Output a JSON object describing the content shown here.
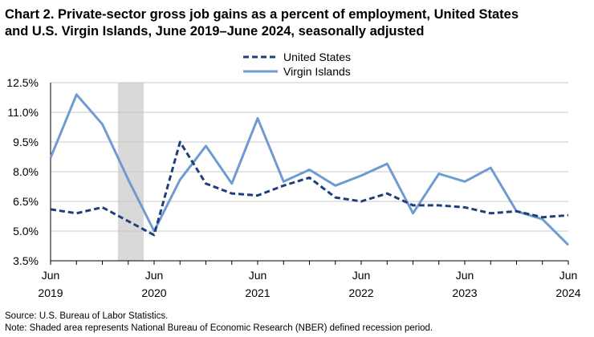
{
  "title_line1": "Chart 2. Private-sector gross job gains as a percent of employment, United States",
  "title_line2": "and U.S. Virgin Islands, June 2019–June 2024, seasonally adjusted",
  "source": "Source: U.S. Bureau of Labor Statistics.",
  "note": "Note: Shaded area represents National Bureau of Economic Research (NBER) defined recession period.",
  "chart_data": {
    "type": "line",
    "title": "Private-sector gross job gains as a percent of employment, United States and U.S. Virgin Islands, June 2019–June 2024, seasonally adjusted",
    "xlabel": "",
    "ylabel": "",
    "x": [
      "Jun 2019",
      "Sep 2019",
      "Dec 2019",
      "Mar 2020",
      "Jun 2020",
      "Sep 2020",
      "Dec 2020",
      "Mar 2021",
      "Jun 2021",
      "Sep 2021",
      "Dec 2021",
      "Mar 2022",
      "Jun 2022",
      "Sep 2022",
      "Dec 2022",
      "Mar 2023",
      "Jun 2023",
      "Sep 2023",
      "Dec 2023",
      "Mar 2024",
      "Jun 2024"
    ],
    "x_tick_labels": [
      {
        "index": 0,
        "line1": "Jun",
        "line2": "2019"
      },
      {
        "index": 4,
        "line1": "Jun",
        "line2": "2020"
      },
      {
        "index": 8,
        "line1": "Jun",
        "line2": "2021"
      },
      {
        "index": 12,
        "line1": "Jun",
        "line2": "2022"
      },
      {
        "index": 16,
        "line1": "Jun",
        "line2": "2023"
      },
      {
        "index": 20,
        "line1": "Jun",
        "line2": "2024"
      }
    ],
    "y_ticks": [
      3.5,
      5.0,
      6.5,
      8.0,
      9.5,
      11.0,
      12.5
    ],
    "y_tick_labels": [
      "3.5%",
      "5.0%",
      "6.5%",
      "8.0%",
      "9.5%",
      "11.0%",
      "12.5%"
    ],
    "ylim": [
      3.5,
      12.5
    ],
    "grid": "horizontal",
    "recession": {
      "start_index": 2.6,
      "end_index": 3.6
    },
    "legend_placement": "top-center",
    "series": [
      {
        "name": "United States",
        "style": "dashed",
        "color": "#1f3f7a",
        "values": [
          6.1,
          5.9,
          6.2,
          5.5,
          4.8,
          9.5,
          7.4,
          6.9,
          6.8,
          7.3,
          7.7,
          6.7,
          6.5,
          6.9,
          6.3,
          6.3,
          6.2,
          5.9,
          6.0,
          5.7,
          5.8
        ]
      },
      {
        "name": "Virgin Islands",
        "style": "solid",
        "color": "#6f9bd1",
        "values": [
          8.7,
          11.9,
          10.4,
          7.6,
          5.0,
          7.6,
          9.3,
          7.4,
          10.7,
          7.5,
          8.1,
          7.3,
          7.8,
          8.4,
          5.9,
          7.9,
          7.5,
          8.2,
          6.0,
          5.6,
          4.3
        ]
      }
    ]
  }
}
